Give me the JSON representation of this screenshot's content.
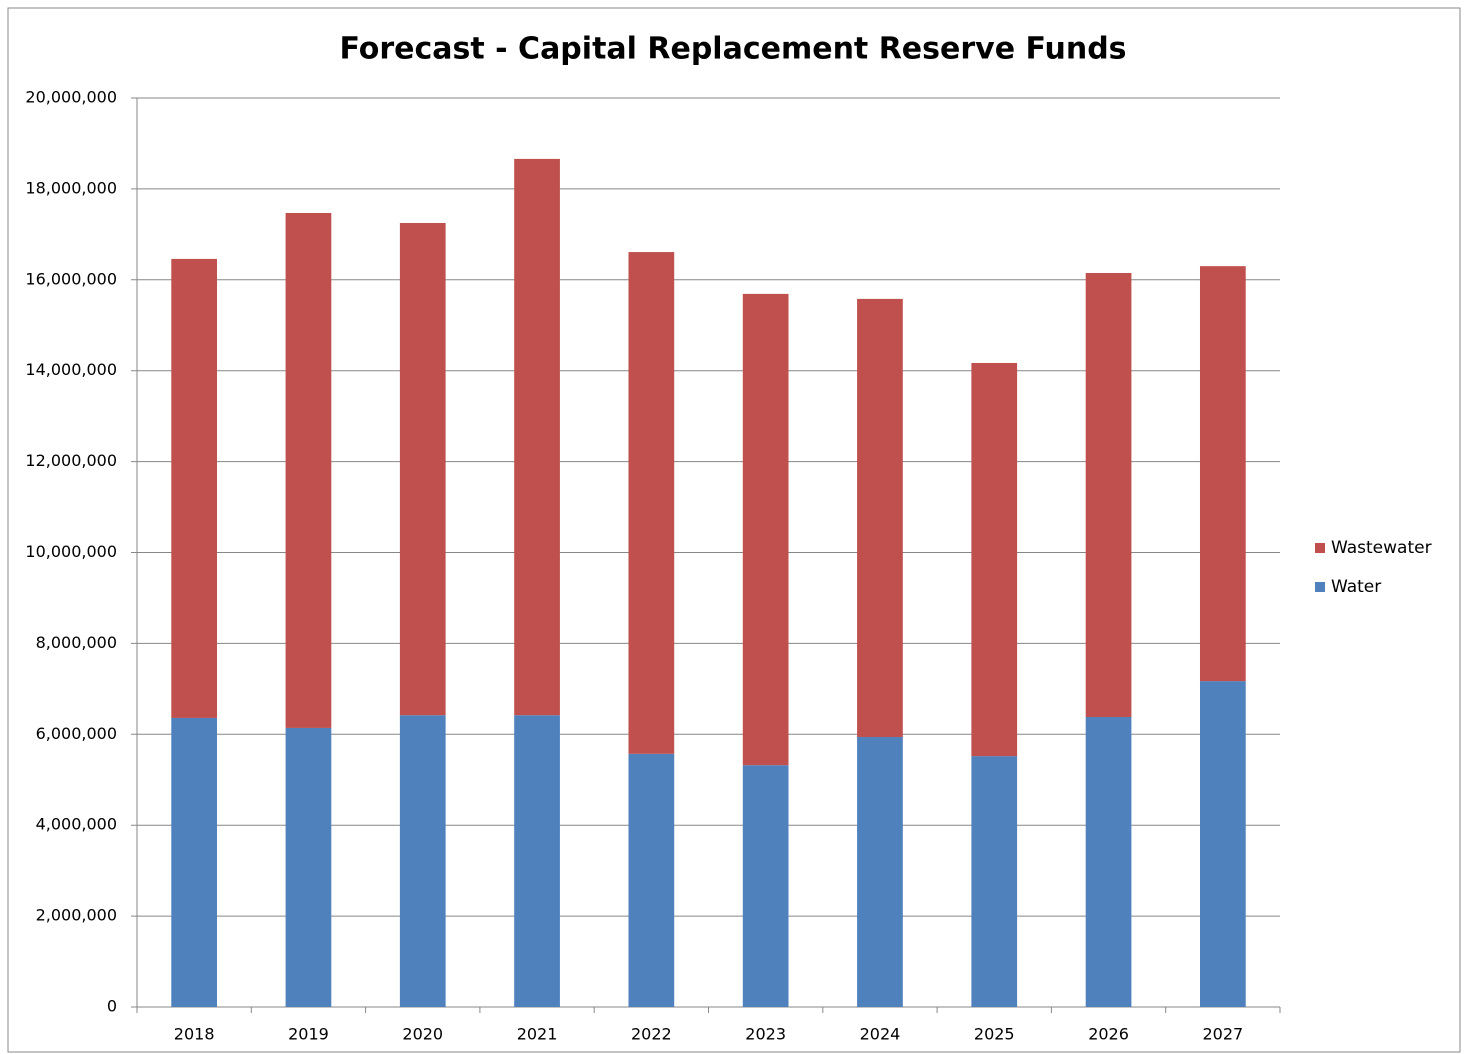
{
  "chart_data": {
    "type": "stacked_bar",
    "title": "Forecast - Capital Replacement Reserve Funds",
    "categories": [
      "2018",
      "2019",
      "2020",
      "2021",
      "2022",
      "2023",
      "2024",
      "2025",
      "2026",
      "2027"
    ],
    "series": [
      {
        "name": "Water",
        "color": "#4f81bd",
        "values": [
          6360000,
          6140000,
          6420000,
          6420000,
          5570000,
          5320000,
          5940000,
          5520000,
          6380000,
          7170000
        ]
      },
      {
        "name": "Wastewater",
        "color": "#c0504d",
        "values": [
          10100000,
          11330000,
          10830000,
          12240000,
          11040000,
          10370000,
          9640000,
          8650000,
          9770000,
          9130000
        ]
      }
    ],
    "ylim": [
      0,
      20000000
    ],
    "yticks": [
      0,
      {
        "value": 2000000,
        "label": "2,000,000"
      },
      {
        "value": 4000000,
        "label": "4,000,000"
      },
      {
        "value": 6000000,
        "label": "6,000,000"
      },
      {
        "value": 8000000,
        "label": "8,000,000"
      },
      {
        "value": 10000000,
        "label": "10,000,000"
      },
      {
        "value": 12000000,
        "label": "12,000,000"
      },
      {
        "value": 14000000,
        "label": "14,000,000"
      },
      {
        "value": 16000000,
        "label": "16,000,000"
      },
      {
        "value": 18000000,
        "label": "18,000,000"
      },
      {
        "value": 20000000,
        "label": "20,000,000"
      }
    ],
    "grid": true,
    "legend": "right"
  }
}
